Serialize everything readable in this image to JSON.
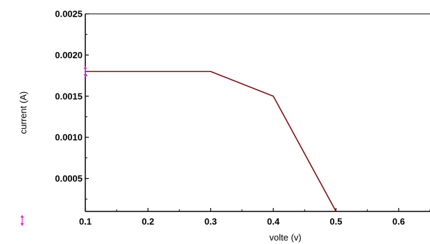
{
  "chart_data": {
    "type": "line",
    "title": "",
    "xlabel": "volte (v)",
    "ylabel": "current (A)",
    "xlim": [
      0.1,
      0.65
    ],
    "ylim": [
      0.0001,
      0.0025
    ],
    "x_ticks": [
      0.1,
      0.2,
      0.3,
      0.4,
      0.5,
      0.6
    ],
    "x_tick_labels": [
      "0.1",
      "0.2",
      "0.3",
      "0.4",
      "0.5",
      "0.6"
    ],
    "y_ticks": [
      0.0005,
      0.001,
      0.0015,
      0.002,
      0.0025
    ],
    "y_tick_labels": [
      "0.0005",
      "0.0010",
      "0.0015",
      "0.0020",
      "0.0025"
    ],
    "grid": false,
    "legend": "none",
    "series": [
      {
        "color": "#7a1010",
        "x": [
          0.1,
          0.3,
          0.4,
          0.5
        ],
        "y": [
          0.0018,
          0.0018,
          0.0015,
          0.0001
        ]
      }
    ],
    "markers": [
      {
        "type": "error-bar",
        "color": "#e020e0",
        "x": 0.1,
        "y": 0.0018
      }
    ],
    "marker_color": "#e020e0",
    "axis_color": "#000000"
  }
}
